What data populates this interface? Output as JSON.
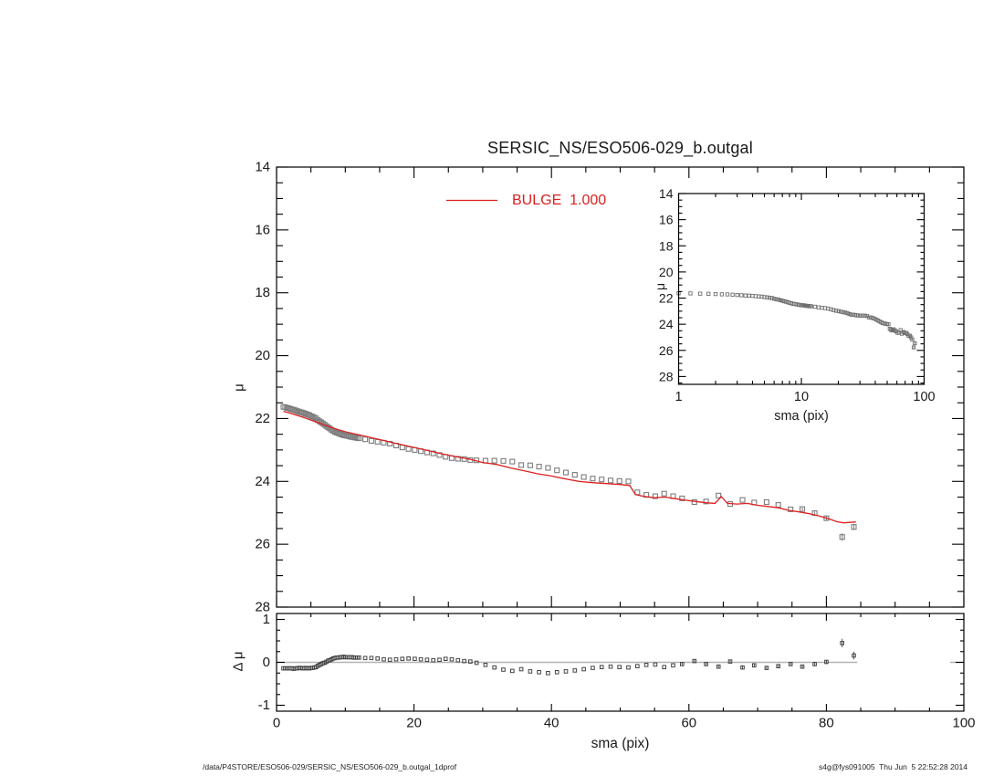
{
  "title": "SERSIC_NS/ESO506-029_b.outgal",
  "legend": {
    "label": "BULGE  1.000",
    "color": "#dd2020"
  },
  "labels": {
    "mu": "μ",
    "delta_mu": "Δ μ",
    "sma": "sma (pix)"
  },
  "footer": {
    "left": "/data/P4STORE/ESO506-029/SERSIC_NS/ESO506-029_b.outgal_1dprof",
    "right": "s4g@fys091005  Thu Jun  5 22:52:28 2014"
  },
  "colors": {
    "model_line": "#dd2020",
    "profile_marker": "#7d7d7d",
    "inset_marker": "#6e6e6e",
    "residual_marker": "#444444",
    "zero_line": "#b3b3b3",
    "frame": "#000000"
  },
  "chart_data": {
    "type": "scatter",
    "panels": {
      "main": {
        "xlim": [
          0,
          100
        ],
        "ylim": [
          28,
          14
        ],
        "x_major_ticks": [
          0,
          20,
          40,
          60,
          80,
          100
        ],
        "x_minor_step": 5,
        "y_major_ticks": [
          14,
          16,
          18,
          20,
          22,
          24,
          26,
          28
        ],
        "y_minor_step": 0.5,
        "y_tick_labels": [
          "14",
          "16",
          "18",
          "20",
          "22",
          "24",
          "26",
          "28"
        ],
        "ylabel": "μ",
        "x_tick_labels_shown": false,
        "grid": false,
        "legend_position": "top-center-inside"
      },
      "inset": {
        "xscale": "log",
        "xlim": [
          1,
          100
        ],
        "ylim": [
          28.6,
          14
        ],
        "x_major_ticks": [
          1,
          10,
          100
        ],
        "x_tick_labels": [
          "1",
          "10",
          "100"
        ],
        "y_major_ticks": [
          14,
          16,
          18,
          20,
          22,
          24,
          26,
          28
        ],
        "y_minor_step": 0.5,
        "y_tick_labels": [
          "14",
          "16",
          "18",
          "20",
          "22",
          "24",
          "26",
          "28"
        ],
        "xlabel": "sma (pix)",
        "ylabel": "μ",
        "grid": false
      },
      "residual": {
        "xlim": [
          0,
          100
        ],
        "ylim": [
          -1.15,
          1.15
        ],
        "x_major_ticks": [
          0,
          20,
          40,
          60,
          80,
          100
        ],
        "x_minor_step": 5,
        "x_tick_labels": [
          "0",
          "20",
          "40",
          "60",
          "80",
          "100"
        ],
        "y_major_ticks": [
          1,
          0,
          -1
        ],
        "y_tick_labels": [
          "1",
          "0",
          "-1"
        ],
        "y_minor_step": 0.25,
        "xlabel": "sma (pix)",
        "ylabel": "Δ μ",
        "zero_line_segments": [
          [
            0,
            84.5
          ],
          [
            98,
            100
          ]
        ],
        "grid": false
      }
    },
    "profile": {
      "name": "surface-brightness-profile",
      "marker": "open-square",
      "sma": [
        1,
        1.25,
        1.5,
        1.75,
        2,
        2.25,
        2.5,
        2.75,
        3,
        3.25,
        3.5,
        3.75,
        4,
        4.25,
        4.5,
        4.75,
        5,
        5.25,
        5.5,
        5.75,
        6,
        6.25,
        6.5,
        6.75,
        7,
        7.25,
        7.5,
        7.75,
        8,
        8.25,
        8.5,
        8.75,
        9,
        9.25,
        9.5,
        9.75,
        10,
        10.25,
        10.5,
        10.75,
        11,
        11.25,
        11.5,
        11.75,
        12,
        12.9,
        13.8,
        14.7,
        15.6,
        16.5,
        17.4,
        18.3,
        19.2,
        20.1,
        21,
        21.9,
        22.8,
        23.7,
        24.6,
        25.5,
        26.4,
        27.3,
        28.2,
        29.1,
        30.4,
        31.7,
        33,
        34.3,
        35.6,
        36.9,
        38.2,
        39.5,
        40.8,
        42.1,
        43.4,
        44.7,
        46,
        47.3,
        48.6,
        49.9,
        51.2,
        52.5,
        53.8,
        55.1,
        56.4,
        57.7,
        59,
        60.8,
        62.5,
        64.3,
        66,
        67.8,
        69.5,
        71.3,
        73,
        74.8,
        76.5,
        78.3,
        80,
        82.3,
        84
      ],
      "mu": [
        21.63,
        21.64,
        21.66,
        21.67,
        21.69,
        21.71,
        21.72,
        21.74,
        21.76,
        21.78,
        21.8,
        21.81,
        21.83,
        21.85,
        21.87,
        21.89,
        21.92,
        21.94,
        21.97,
        22,
        22.05,
        22.09,
        22.12,
        22.16,
        22.2,
        22.24,
        22.28,
        22.32,
        22.36,
        22.39,
        22.43,
        22.45,
        22.47,
        22.49,
        22.51,
        22.53,
        22.54,
        22.55,
        22.56,
        22.58,
        22.59,
        22.6,
        22.61,
        22.62,
        22.63,
        22.66,
        22.71,
        22.74,
        22.77,
        22.8,
        22.86,
        22.92,
        22.97,
        23,
        23.04,
        23.08,
        23.11,
        23.16,
        23.22,
        23.26,
        23.28,
        23.29,
        23.32,
        23.33,
        23.34,
        23.34,
        23.35,
        23.37,
        23.48,
        23.49,
        23.53,
        23.57,
        23.65,
        23.72,
        23.79,
        23.86,
        23.91,
        23.94,
        23.97,
        23.99,
        24,
        24.35,
        24.43,
        24.47,
        24.39,
        24.47,
        24.54,
        24.66,
        24.64,
        24.45,
        24.72,
        24.59,
        24.67,
        24.66,
        24.75,
        24.89,
        24.88,
        25.01,
        25.17,
        25.77,
        25.45
      ],
      "err_points": {
        "sma": [
          76.5,
          78.3,
          80,
          82.3,
          84
        ],
        "err": [
          0.05,
          0.05,
          0.06,
          0.12,
          0.1
        ]
      }
    },
    "model": {
      "name": "BULGE",
      "sersic_n": "1.000",
      "sma": [
        1,
        2,
        3,
        4,
        5,
        6,
        7,
        8,
        9,
        10,
        11,
        12,
        14,
        16,
        18,
        20,
        22,
        24,
        26,
        28,
        30,
        32,
        34,
        36,
        38,
        40,
        41.5,
        42,
        44,
        46,
        48,
        50,
        51.4,
        52.2,
        53.5,
        55,
        56.5,
        58,
        59.5,
        61,
        62.5,
        63.8,
        64.7,
        65.6,
        67,
        68.5,
        70,
        71.5,
        73,
        74.5,
        76,
        77.5,
        79,
        80.5,
        81.5,
        82.5,
        84.3
      ],
      "mu": [
        21.77,
        21.83,
        21.9,
        21.97,
        22.05,
        22.13,
        22.21,
        22.29,
        22.36,
        22.42,
        22.47,
        22.52,
        22.62,
        22.72,
        22.82,
        22.92,
        23.02,
        23.12,
        23.21,
        23.29,
        23.4,
        23.46,
        23.57,
        23.66,
        23.76,
        23.83,
        23.9,
        23.92,
        24,
        24.04,
        24.07,
        24.1,
        24.13,
        24.42,
        24.48,
        24.52,
        24.5,
        24.55,
        24.6,
        24.64,
        24.68,
        24.7,
        24.48,
        24.7,
        24.72,
        24.7,
        24.76,
        24.8,
        24.84,
        24.92,
        24.97,
        25.03,
        25.1,
        25.2,
        25.28,
        25.32,
        25.29
      ]
    },
    "residual": {
      "name": "data-minus-model",
      "sma": [
        1,
        1.25,
        1.5,
        1.75,
        2,
        2.25,
        2.5,
        2.75,
        3,
        3.25,
        3.5,
        3.75,
        4,
        4.25,
        4.5,
        4.75,
        5,
        5.25,
        5.5,
        5.75,
        6,
        6.25,
        6.5,
        6.75,
        7,
        7.25,
        7.5,
        7.75,
        8,
        8.25,
        8.5,
        8.75,
        9,
        9.25,
        9.5,
        9.75,
        10,
        10.25,
        10.5,
        10.75,
        11,
        11.25,
        11.5,
        11.75,
        12,
        12.9,
        13.8,
        14.7,
        15.6,
        16.5,
        17.4,
        18.3,
        19.2,
        20.1,
        21,
        21.9,
        22.8,
        23.7,
        24.6,
        25.5,
        26.4,
        27.3,
        28.2,
        29.1,
        30.4,
        31.7,
        33,
        34.3,
        35.6,
        36.9,
        38.2,
        39.5,
        40.8,
        42.1,
        43.4,
        44.7,
        46,
        47.3,
        48.6,
        49.9,
        51.2,
        52.5,
        53.8,
        55.1,
        56.4,
        57.7,
        59,
        60.8,
        62.5,
        64.3,
        66,
        67.8,
        69.5,
        71.3,
        73,
        74.8,
        76.5,
        78.3,
        80,
        82.3,
        84
      ],
      "dmu": [
        -0.14,
        -0.14,
        -0.14,
        -0.14,
        -0.14,
        -0.14,
        -0.15,
        -0.14,
        -0.14,
        -0.13,
        -0.13,
        -0.14,
        -0.14,
        -0.13,
        -0.14,
        -0.14,
        -0.13,
        -0.13,
        -0.12,
        -0.11,
        -0.08,
        -0.06,
        -0.04,
        -0.02,
        -0.01,
        0.01,
        0.04,
        0.05,
        0.07,
        0.09,
        0.1,
        0.11,
        0.11,
        0.12,
        0.12,
        0.13,
        0.12,
        0.12,
        0.12,
        0.12,
        0.12,
        0.11,
        0.11,
        0.11,
        0.11,
        0.1,
        0.1,
        0.09,
        0.07,
        0.06,
        0.07,
        0.08,
        0.09,
        0.08,
        0.07,
        0.06,
        0.05,
        0.06,
        0.08,
        0.07,
        0.05,
        0.03,
        0.02,
        -0.01,
        -0.06,
        -0.12,
        -0.17,
        -0.2,
        -0.16,
        -0.21,
        -0.23,
        -0.25,
        -0.23,
        -0.21,
        -0.19,
        -0.16,
        -0.13,
        -0.11,
        -0.1,
        -0.11,
        -0.12,
        -0.09,
        -0.06,
        -0.05,
        -0.11,
        -0.07,
        -0.04,
        0.03,
        -0.04,
        -0.1,
        0.02,
        -0.12,
        -0.07,
        -0.13,
        -0.09,
        -0.04,
        -0.1,
        -0.04,
        0.01,
        0.45,
        0.16
      ],
      "err_points": {
        "sma": [
          59,
          60.8,
          62.5,
          64.3,
          66,
          67.8,
          69.5,
          71.3,
          73,
          74.8,
          76.5,
          78.3,
          80,
          82.3,
          84
        ],
        "err": [
          0.03,
          0.04,
          0.04,
          0.04,
          0.04,
          0.04,
          0.04,
          0.04,
          0.04,
          0.04,
          0.05,
          0.05,
          0.05,
          0.1,
          0.09
        ]
      }
    }
  }
}
